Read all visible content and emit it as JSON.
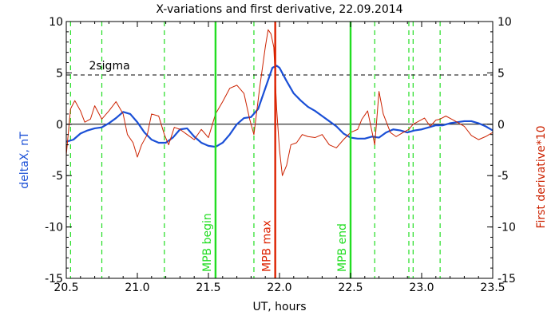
{
  "chart_data": {
    "type": "line",
    "title": "X-variations and first derivative, 22.09.2014",
    "xlabel": "UT, hours",
    "ylabel_left": "deltaX, nT",
    "ylabel_right": "First derivative*10",
    "xlim": [
      20.5,
      23.5
    ],
    "ylim": [
      -15,
      10
    ],
    "x_ticks": [
      20.5,
      21.0,
      21.5,
      22.0,
      22.5,
      23.0,
      23.5
    ],
    "x_tick_labels": [
      "20.5",
      "21.0",
      "21.5",
      "22.0",
      "22.5",
      "23.0",
      "23.5"
    ],
    "y_ticks": [
      -15,
      -10,
      -5,
      0,
      5,
      10
    ],
    "y_tick_labels": [
      "-15",
      "-10",
      "-5",
      "0",
      "5",
      "10"
    ],
    "colors": {
      "deltaX": "#1a4fd6",
      "derivative": "#cc2200",
      "green": "#22dd22",
      "red_marker": "#dd2200",
      "axis": "#000000"
    },
    "threshold": {
      "y": 4.8,
      "label": "2sigma"
    },
    "zero_line": 0,
    "dashed_verticals": [
      20.53,
      20.75,
      21.19,
      21.82,
      22.67,
      22.91,
      22.94,
      23.13
    ],
    "markers": [
      {
        "x": 21.55,
        "label": "MPB begin",
        "color": "green"
      },
      {
        "x": 21.97,
        "label": "MPB max",
        "color": "red_marker"
      },
      {
        "x": 22.5,
        "label": "MPB end",
        "color": "green"
      }
    ],
    "series": [
      {
        "key": "deltaX",
        "name": "deltaX, nT",
        "x": [
          20.5,
          20.55,
          20.6,
          20.65,
          20.7,
          20.75,
          20.8,
          20.85,
          20.9,
          20.95,
          21.0,
          21.05,
          21.1,
          21.15,
          21.2,
          21.25,
          21.3,
          21.35,
          21.4,
          21.45,
          21.5,
          21.55,
          21.6,
          21.65,
          21.7,
          21.75,
          21.8,
          21.85,
          21.9,
          21.95,
          21.98,
          22.0,
          22.05,
          22.1,
          22.15,
          22.2,
          22.25,
          22.3,
          22.35,
          22.4,
          22.45,
          22.5,
          22.55,
          22.6,
          22.65,
          22.7,
          22.75,
          22.8,
          22.85,
          22.9,
          22.95,
          23.0,
          23.05,
          23.1,
          23.15,
          23.2,
          23.25,
          23.3,
          23.35,
          23.4,
          23.45,
          23.5
        ],
        "y": [
          -1.7,
          -1.5,
          -0.9,
          -0.6,
          -0.4,
          -0.3,
          0.1,
          0.6,
          1.2,
          1.0,
          0.2,
          -0.8,
          -1.5,
          -1.8,
          -1.8,
          -1.3,
          -0.5,
          -0.4,
          -1.2,
          -1.8,
          -2.1,
          -2.2,
          -1.8,
          -1.0,
          0.0,
          0.6,
          0.7,
          1.5,
          3.5,
          5.5,
          5.7,
          5.5,
          4.2,
          3.0,
          2.3,
          1.7,
          1.3,
          0.8,
          0.3,
          -0.2,
          -0.9,
          -1.3,
          -1.4,
          -1.4,
          -1.2,
          -1.3,
          -0.8,
          -0.5,
          -0.6,
          -0.8,
          -0.6,
          -0.5,
          -0.3,
          -0.1,
          -0.1,
          0.1,
          0.2,
          0.3,
          0.3,
          0.1,
          -0.2,
          -0.6
        ]
      },
      {
        "key": "derivative",
        "name": "First derivative*10",
        "x": [
          20.5,
          20.53,
          20.56,
          20.6,
          20.63,
          20.67,
          20.7,
          20.75,
          20.8,
          20.85,
          20.9,
          20.93,
          20.97,
          21.0,
          21.03,
          21.07,
          21.1,
          21.15,
          21.19,
          21.22,
          21.26,
          21.3,
          21.35,
          21.4,
          21.45,
          21.5,
          21.55,
          21.6,
          21.65,
          21.7,
          21.75,
          21.79,
          21.82,
          21.86,
          21.9,
          21.92,
          21.94,
          21.96,
          21.97,
          21.98,
          22.0,
          22.02,
          22.05,
          22.08,
          22.12,
          22.16,
          22.2,
          22.25,
          22.3,
          22.35,
          22.4,
          22.45,
          22.5,
          22.55,
          22.58,
          22.62,
          22.67,
          22.7,
          22.73,
          22.78,
          22.82,
          22.87,
          22.91,
          22.94,
          22.98,
          23.02,
          23.06,
          23.1,
          23.13,
          23.17,
          23.21,
          23.25,
          23.3,
          23.35,
          23.4,
          23.45,
          23.5
        ],
        "y": [
          -3.0,
          1.5,
          2.3,
          1.3,
          0.2,
          0.5,
          1.8,
          0.5,
          1.3,
          2.2,
          1.0,
          -1.0,
          -1.8,
          -3.2,
          -2.0,
          -1.0,
          1.0,
          0.8,
          -1.0,
          -2.0,
          -0.3,
          -0.5,
          -1.0,
          -1.5,
          -0.5,
          -1.3,
          1.0,
          2.2,
          3.5,
          3.8,
          3.0,
          0.5,
          -1.0,
          3.5,
          7.5,
          9.2,
          8.8,
          7.5,
          4.5,
          1.5,
          -2.5,
          -5.0,
          -4.0,
          -2.0,
          -1.8,
          -1.0,
          -1.2,
          -1.3,
          -1.0,
          -2.0,
          -2.3,
          -1.5,
          -0.8,
          -0.5,
          0.5,
          1.3,
          -2.0,
          3.2,
          1.0,
          -0.8,
          -1.2,
          -0.8,
          -0.5,
          0.0,
          0.3,
          0.6,
          -0.2,
          0.4,
          0.5,
          0.8,
          0.5,
          0.2,
          -0.2,
          -1.1,
          -1.5,
          -1.2,
          -0.8
        ]
      }
    ]
  }
}
